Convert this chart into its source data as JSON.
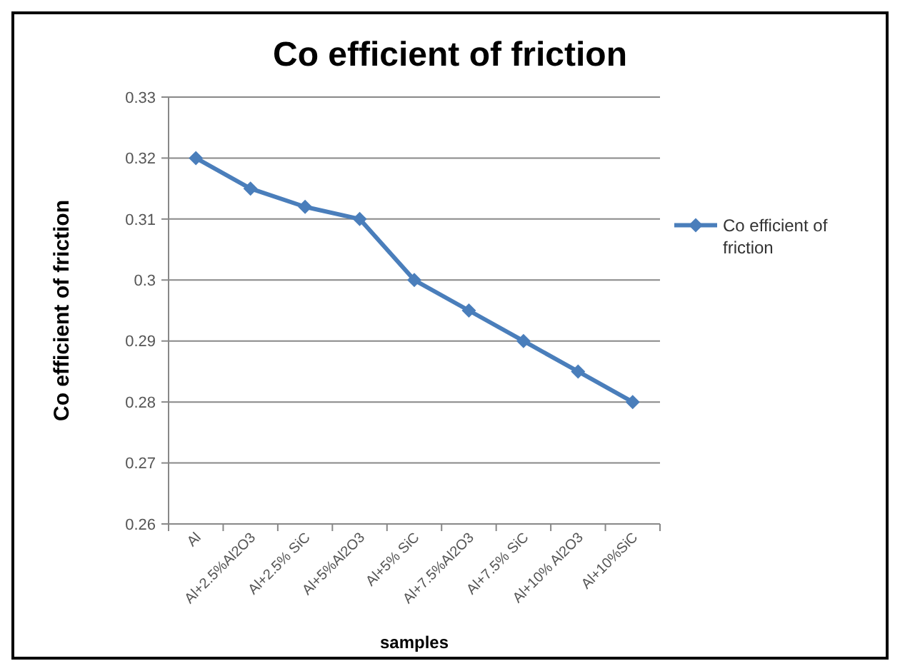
{
  "chart_data": {
    "type": "line",
    "title": "Co efficient  of friction",
    "xlabel": "samples",
    "ylabel": "Co efficient  of friction",
    "categories": [
      "Al",
      "Al+2.5%Al2O3",
      "Al+2.5% SiC",
      "Al+5%Al2O3",
      "Al+5% SiC",
      "Al+7.5%Al2O3",
      "Al+7.5% SiC",
      "Al+10% Al2O3",
      "Al+10%SiC"
    ],
    "series": [
      {
        "name": "Co efficient  of friction",
        "color": "#4a7ebb",
        "values": [
          0.32,
          0.315,
          0.312,
          0.31,
          0.3,
          0.295,
          0.29,
          0.285,
          0.28
        ]
      }
    ],
    "ylim": [
      0.26,
      0.33
    ],
    "yticks": [
      0.26,
      0.27,
      0.28,
      0.29,
      0.3,
      0.31,
      0.32,
      0.33
    ],
    "grid": "y",
    "legend": "right",
    "marker": "diamond",
    "line_style": "solid"
  }
}
